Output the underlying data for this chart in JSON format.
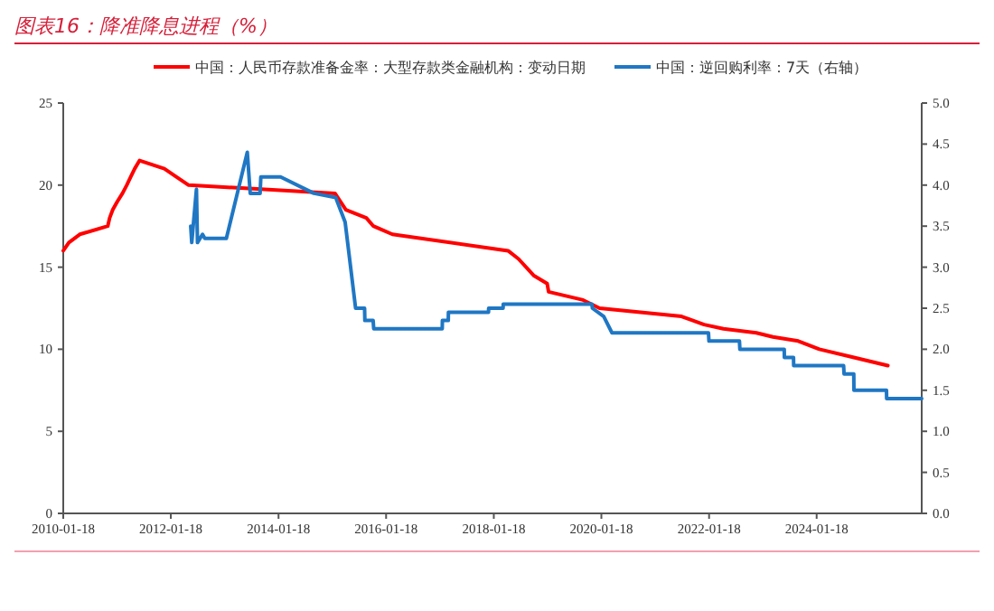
{
  "chart_data": {
    "type": "line",
    "title": "图表16：降准降息进程（%）",
    "xlim": [
      "2010-01-18",
      "2025-12-31"
    ],
    "xticks": [
      "2010-01-18",
      "2012-01-18",
      "2014-01-18",
      "2016-01-18",
      "2018-01-18",
      "2020-01-18",
      "2022-01-18",
      "2024-01-18"
    ],
    "ylim": [
      0,
      25
    ],
    "yticks": [
      0,
      5,
      10,
      15,
      20,
      25
    ],
    "y2lim": [
      0,
      5
    ],
    "y2ticks": [
      {
        "value": 0,
        "label": "0.0"
      },
      {
        "value": 0.5,
        "label": "0.5"
      },
      {
        "value": 1,
        "label": "1.0"
      },
      {
        "value": 1.5,
        "label": "1.5"
      },
      {
        "value": 2,
        "label": "2.0"
      },
      {
        "value": 2.5,
        "label": "2.5"
      },
      {
        "value": 3,
        "label": "3.0"
      },
      {
        "value": 3.5,
        "label": "3.5"
      },
      {
        "value": 4,
        "label": "4.0"
      },
      {
        "value": 4.5,
        "label": "4.5"
      },
      {
        "value": 5,
        "label": "5.0"
      }
    ],
    "grid": false,
    "legend": "top",
    "marker": "none",
    "line_style": "solid",
    "series": [
      {
        "name": "中国：人民币存款准备金率：大型存款类金融机构：变动日期",
        "color": "#ff0000",
        "x": [
          "2010-01-18",
          "2010-02-25",
          "2010-05-10",
          "2010-11-16",
          "2010-11-29",
          "2010-12-20",
          "2011-01-20",
          "2011-02-24",
          "2011-03-25",
          "2011-04-21",
          "2011-05-18",
          "2011-06-20",
          "2011-12-05",
          "2012-02-24",
          "2012-05-18",
          "2015-02-05",
          "2015-04-20",
          "2015-09-06",
          "2015-10-24",
          "2016-03-01",
          "2018-04-25",
          "2018-07-05",
          "2018-10-15",
          "2019-01-15",
          "2019-01-25",
          "2019-09-16",
          "2020-01-06",
          "2021-07-15",
          "2021-12-15",
          "2022-04-25",
          "2022-12-05",
          "2023-03-27",
          "2023-09-15",
          "2024-02-05",
          "2024-09-27",
          "2025-05-15"
        ],
        "values": [
          16.0,
          16.5,
          17.0,
          17.5,
          18.0,
          18.5,
          19.0,
          19.5,
          20.0,
          20.5,
          21.0,
          21.5,
          21.0,
          20.5,
          20.0,
          19.5,
          18.5,
          18.0,
          17.5,
          17.0,
          16.0,
          15.5,
          14.5,
          14.0,
          13.5,
          13.0,
          12.5,
          12.0,
          11.5,
          11.25,
          11.0,
          10.75,
          10.5,
          10.0,
          9.5,
          9.0
        ]
      },
      {
        "name": "中国：逆回购利率：7天（右轴）",
        "color": "#1f77c4",
        "axis": "y2",
        "x": [
          "2012-06-01",
          "2012-06-08",
          "2012-07-10",
          "2012-07-17",
          "2012-08-20",
          "2012-09-05",
          "2013-01-29",
          "2013-06-20",
          "2013-07-10",
          "2013-09-15",
          "2013-09-20",
          "2014-02-01",
          "2014-09-15",
          "2015-02-10",
          "2015-04-15",
          "2015-06-25",
          "2015-08-25",
          "2015-08-27",
          "2015-10-22",
          "2015-10-26",
          "2017-02-02",
          "2017-02-03",
          "2017-03-15",
          "2017-03-16",
          "2017-12-13",
          "2017-12-14",
          "2018-03-22",
          "2018-03-23",
          "2019-11-15",
          "2019-11-18",
          "2020-02-03",
          "2020-03-30",
          "2022-01-14",
          "2022-01-17",
          "2022-08-12",
          "2022-08-15",
          "2023-06-12",
          "2023-06-13",
          "2023-08-14",
          "2023-08-15",
          "2024-07-19",
          "2024-07-22",
          "2024-09-26",
          "2024-09-27",
          "2025-05-06",
          "2025-05-07",
          "2025-12-31"
        ],
        "values": [
          3.5,
          3.3,
          3.95,
          3.3,
          3.4,
          3.35,
          3.35,
          4.4,
          3.9,
          3.9,
          4.1,
          4.1,
          3.9,
          3.85,
          3.55,
          2.5,
          2.5,
          2.35,
          2.35,
          2.25,
          2.25,
          2.35,
          2.35,
          2.45,
          2.45,
          2.5,
          2.5,
          2.55,
          2.55,
          2.5,
          2.4,
          2.2,
          2.2,
          2.1,
          2.1,
          2.0,
          2.0,
          1.9,
          1.9,
          1.8,
          1.8,
          1.7,
          1.7,
          1.5,
          1.5,
          1.4,
          1.4
        ]
      }
    ]
  }
}
